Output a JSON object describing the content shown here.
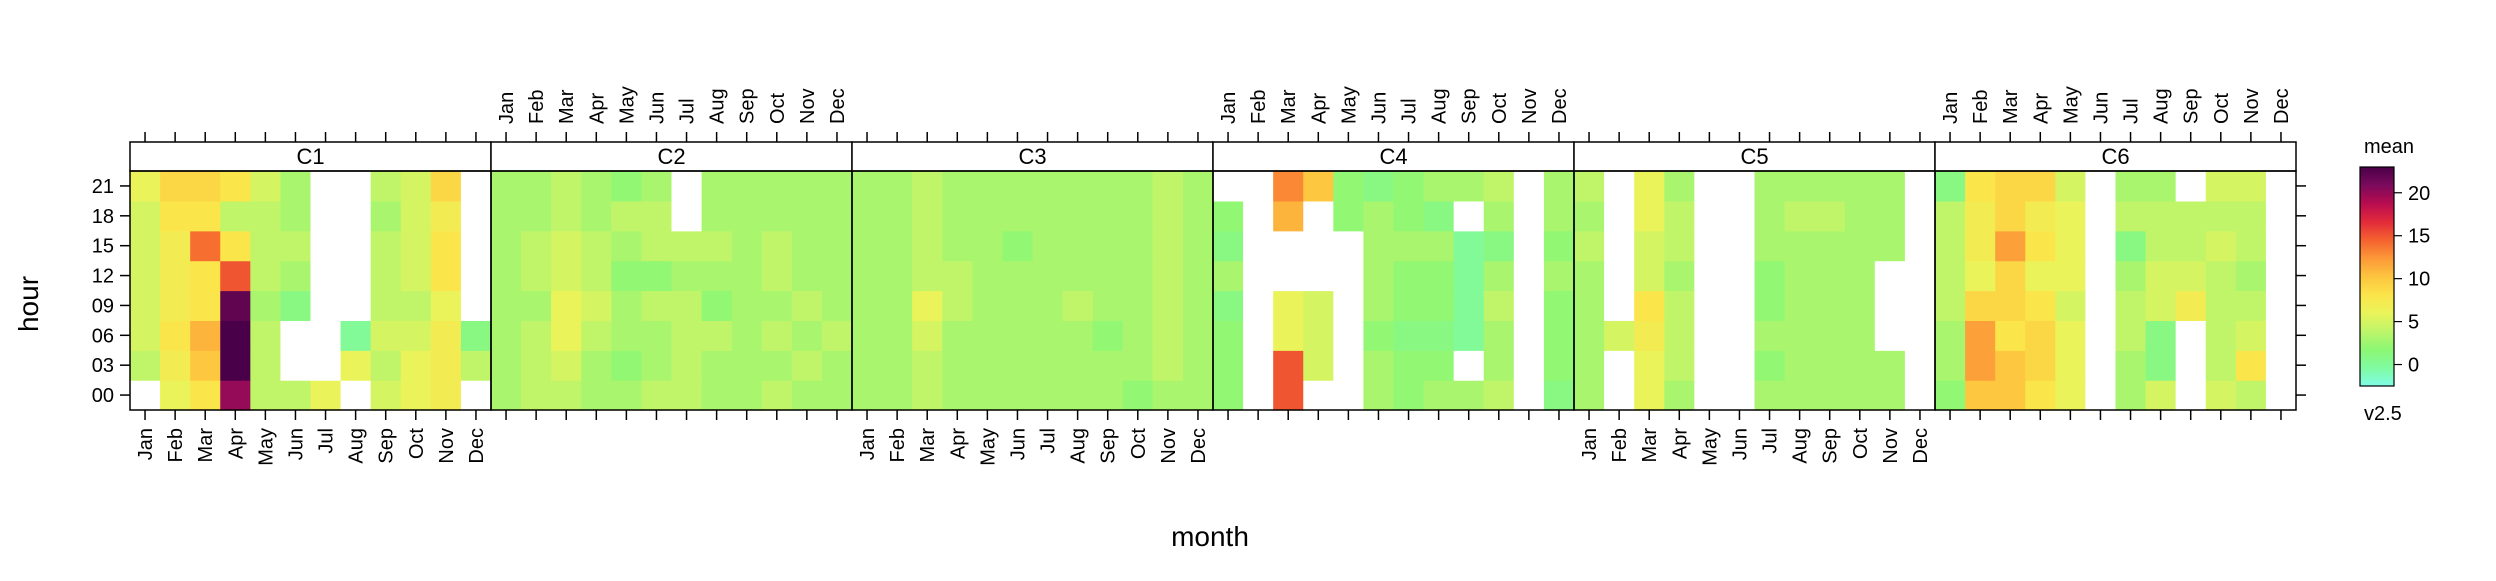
{
  "chart_data": {
    "type": "heatmap",
    "xlabel": "month",
    "ylabel": "hour",
    "months": [
      "Jan",
      "Feb",
      "Mar",
      "Apr",
      "May",
      "Jun",
      "Jul",
      "Aug",
      "Sep",
      "Oct",
      "Nov",
      "Dec"
    ],
    "hours": [
      "00",
      "03",
      "06",
      "09",
      "12",
      "15",
      "18",
      "21"
    ],
    "hour_ticks": [
      "00",
      "03",
      "06",
      "09",
      "12",
      "15",
      "18",
      "21"
    ],
    "grid": false,
    "legend": {
      "position": "right",
      "title": "mean",
      "subtitle": "v2.5",
      "ticks": [
        0,
        5,
        10,
        15,
        20
      ],
      "range": [
        -2.5,
        23
      ]
    },
    "colors": {
      "scale": [
        "#7ffce6",
        "#80fba0",
        "#8cf773",
        "#bef56a",
        "#eaf45a",
        "#fbe44a",
        "#fdc43f",
        "#fc9838",
        "#f4622f",
        "#e22a3a",
        "#b80c50",
        "#7c0a5c",
        "#4a0048"
      ],
      "missing": "#ffffff"
    },
    "panels": [
      {
        "name": "C1",
        "rows": [
          [
            null,
            6,
            8,
            20,
            4,
            4,
            6,
            null,
            5,
            6,
            7,
            null
          ],
          [
            4,
            7,
            10,
            23,
            4,
            null,
            null,
            6,
            4,
            6,
            7,
            4
          ],
          [
            5,
            8,
            11,
            23,
            4,
            null,
            null,
            0,
            5,
            5,
            7,
            1
          ],
          [
            5,
            7,
            8,
            22,
            3,
            1,
            null,
            null,
            4,
            4,
            6,
            null
          ],
          [
            5,
            7,
            8,
            15,
            4,
            3,
            null,
            null,
            4,
            5,
            8,
            null
          ],
          [
            5,
            7,
            14,
            8,
            4,
            4,
            null,
            null,
            4,
            5,
            8,
            null
          ],
          [
            5,
            8,
            8,
            4,
            4,
            3,
            null,
            null,
            3,
            5,
            7,
            null
          ],
          [
            6,
            9,
            9,
            8,
            5,
            3,
            null,
            null,
            4,
            5,
            9,
            null
          ]
        ]
      },
      {
        "name": "C2",
        "rows": [
          [
            3,
            4,
            4,
            3,
            3,
            4,
            4,
            3,
            3,
            4,
            3,
            3
          ],
          [
            3,
            4,
            5,
            3,
            2,
            3,
            4,
            3,
            3,
            3,
            4,
            3
          ],
          [
            3,
            4,
            6,
            4,
            3,
            3,
            4,
            4,
            3,
            4,
            3,
            4
          ],
          [
            3,
            3,
            6,
            5,
            3,
            4,
            4,
            2,
            3,
            3,
            4,
            3
          ],
          [
            3,
            4,
            5,
            4,
            2,
            2,
            3,
            3,
            3,
            4,
            3,
            3
          ],
          [
            3,
            4,
            5,
            4,
            3,
            4,
            4,
            4,
            3,
            4,
            3,
            3
          ],
          [
            3,
            3,
            4,
            3,
            4,
            4,
            null,
            3,
            3,
            3,
            3,
            3
          ],
          [
            3,
            3,
            4,
            3,
            2,
            3,
            null,
            3,
            3,
            3,
            3,
            3
          ]
        ]
      },
      {
        "name": "C3",
        "rows": [
          [
            3,
            3,
            4,
            3,
            3,
            3,
            3,
            3,
            3,
            2,
            3,
            3
          ],
          [
            3,
            3,
            4,
            3,
            3,
            3,
            3,
            3,
            3,
            3,
            4,
            3
          ],
          [
            3,
            3,
            5,
            3,
            3,
            3,
            3,
            3,
            2,
            3,
            4,
            3
          ],
          [
            3,
            3,
            6,
            4,
            3,
            3,
            3,
            4,
            3,
            3,
            4,
            3
          ],
          [
            3,
            3,
            4,
            4,
            3,
            3,
            3,
            3,
            3,
            3,
            4,
            3
          ],
          [
            3,
            3,
            4,
            3,
            3,
            2,
            3,
            3,
            3,
            3,
            4,
            3
          ],
          [
            3,
            3,
            4,
            3,
            3,
            3,
            3,
            3,
            3,
            3,
            4,
            3
          ],
          [
            3,
            3,
            4,
            3,
            3,
            3,
            3,
            3,
            3,
            3,
            4,
            3
          ]
        ]
      },
      {
        "name": "C4",
        "rows": [
          [
            2,
            null,
            15,
            null,
            null,
            3,
            2,
            3,
            3,
            4,
            null,
            1
          ],
          [
            2,
            null,
            15,
            5,
            null,
            3,
            2,
            2,
            null,
            3,
            null,
            2
          ],
          [
            2,
            null,
            6,
            5,
            null,
            2,
            1,
            1,
            0,
            3,
            null,
            2
          ],
          [
            1,
            null,
            6,
            5,
            null,
            3,
            2,
            2,
            0,
            4,
            null,
            2
          ],
          [
            3,
            null,
            null,
            null,
            null,
            3,
            2,
            2,
            0,
            3,
            null,
            3
          ],
          [
            1,
            null,
            null,
            null,
            null,
            3,
            3,
            3,
            0,
            1,
            null,
            2
          ],
          [
            2,
            null,
            11,
            null,
            2,
            3,
            2,
            1,
            null,
            3,
            null,
            3
          ],
          [
            null,
            null,
            13,
            10,
            2,
            1,
            2,
            3,
            3,
            4,
            null,
            3
          ]
        ]
      },
      {
        "name": "C5",
        "rows": [
          [
            3,
            null,
            6,
            3,
            null,
            null,
            3,
            3,
            3,
            3,
            3,
            null
          ],
          [
            3,
            null,
            6,
            4,
            null,
            null,
            2,
            3,
            3,
            3,
            3,
            null
          ],
          [
            3,
            5,
            7,
            4,
            null,
            null,
            3,
            3,
            3,
            3,
            null,
            null
          ],
          [
            3,
            null,
            8,
            4,
            null,
            null,
            2,
            3,
            3,
            3,
            null,
            null
          ],
          [
            3,
            null,
            5,
            3,
            null,
            null,
            2,
            3,
            3,
            3,
            null,
            null
          ],
          [
            4,
            null,
            5,
            4,
            null,
            null,
            3,
            3,
            3,
            3,
            3,
            null
          ],
          [
            3,
            null,
            6,
            4,
            null,
            null,
            3,
            4,
            4,
            3,
            3,
            null
          ],
          [
            4,
            null,
            6,
            3,
            null,
            null,
            3,
            3,
            3,
            3,
            3,
            null
          ]
        ]
      },
      {
        "name": "C6",
        "rows": [
          [
            2,
            10,
            10,
            8,
            6,
            null,
            3,
            5,
            null,
            5,
            4,
            null
          ],
          [
            3,
            12,
            10,
            9,
            6,
            null,
            3,
            1,
            null,
            4,
            8,
            null
          ],
          [
            3,
            12,
            8,
            9,
            6,
            null,
            4,
            1,
            null,
            4,
            5,
            null
          ],
          [
            4,
            9,
            9,
            8,
            5,
            null,
            4,
            5,
            7,
            4,
            4,
            null
          ],
          [
            4,
            6,
            9,
            6,
            6,
            null,
            3,
            5,
            5,
            4,
            3,
            null
          ],
          [
            4,
            7,
            12,
            8,
            6,
            null,
            1,
            4,
            4,
            5,
            4,
            null
          ],
          [
            4,
            7,
            9,
            7,
            6,
            null,
            4,
            4,
            4,
            4,
            4,
            null
          ],
          [
            1,
            8,
            9,
            9,
            5,
            null,
            3,
            3,
            null,
            5,
            5,
            null
          ]
        ]
      }
    ]
  }
}
